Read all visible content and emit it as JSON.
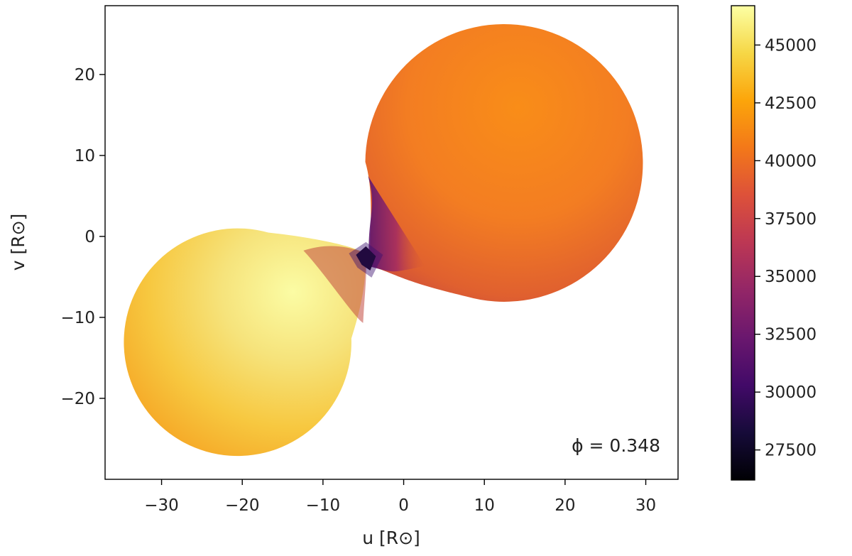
{
  "chart_data": {
    "type": "heatmap",
    "title": "",
    "xlabel": "u [R⊙]",
    "ylabel": "v [R⊙]",
    "xlim": [
      -37,
      34
    ],
    "ylim": [
      -30,
      28.5
    ],
    "xticks": [
      -30,
      -20,
      -10,
      0,
      10,
      20,
      30
    ],
    "xtick_labels": [
      "−30",
      "−20",
      "−10",
      "0",
      "10",
      "20",
      "30"
    ],
    "yticks": [
      -20,
      -10,
      0,
      10,
      20
    ],
    "ytick_labels": [
      "−20",
      "−10",
      "0",
      "10",
      "20"
    ],
    "grid": false,
    "annotation": "ϕ = 0.348",
    "annotation_position": "bottom-right",
    "colorbar": {
      "colormap": "inferno",
      "range": [
        26200,
        46700
      ],
      "ticks": [
        27500,
        30000,
        32500,
        35000,
        37500,
        40000,
        42500,
        45000
      ],
      "tick_labels": [
        "27500",
        "30000",
        "32500",
        "35000",
        "37500",
        "40000",
        "42500",
        "45000"
      ]
    },
    "components": [
      {
        "label": "left star",
        "center_u": -20.3,
        "center_v": -13.3,
        "radius": 14.1,
        "peak_value": 46700,
        "limb_value": 42800
      },
      {
        "label": "right star",
        "center_u": 12.1,
        "center_v": 9.2,
        "radius": 17.2,
        "peak_value": 41600,
        "limb_value": 36800
      },
      {
        "label": "neck",
        "center_u": -4.5,
        "center_v": -2.8,
        "value": 26400
      }
    ]
  }
}
